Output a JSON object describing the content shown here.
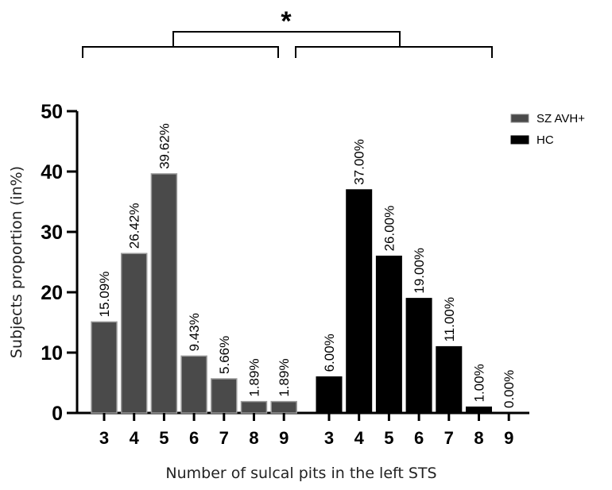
{
  "chart_data": {
    "type": "bar",
    "ylabel": "Subjects proportion (in%)",
    "xlabel": "Number of sulcal pits in the left STS",
    "ylim": [
      0,
      50
    ],
    "yticks": [
      "0",
      "10",
      "20",
      "30",
      "40",
      "50"
    ],
    "legend_position": "top-right",
    "significance": "*",
    "series": [
      {
        "name": "SZ AVH+",
        "color": "#4a4a4a",
        "categories": [
          "3",
          "4",
          "5",
          "6",
          "7",
          "8",
          "9"
        ],
        "values": [
          15.09,
          26.42,
          39.62,
          9.43,
          5.66,
          1.89,
          1.89
        ],
        "labels": [
          "15.09%",
          "26.42%",
          "39.62%",
          "9.43%",
          "5.66%",
          "1.89%",
          "1.89%"
        ]
      },
      {
        "name": "HC",
        "color": "#000000",
        "categories": [
          "3",
          "4",
          "5",
          "6",
          "7",
          "8",
          "9"
        ],
        "values": [
          6.0,
          37.0,
          26.0,
          19.0,
          11.0,
          1.0,
          0.0
        ],
        "labels": [
          "6.00%",
          "37.00%",
          "26.00%",
          "19.00%",
          "11.00%",
          "1.00%",
          "0.00%"
        ]
      }
    ]
  }
}
